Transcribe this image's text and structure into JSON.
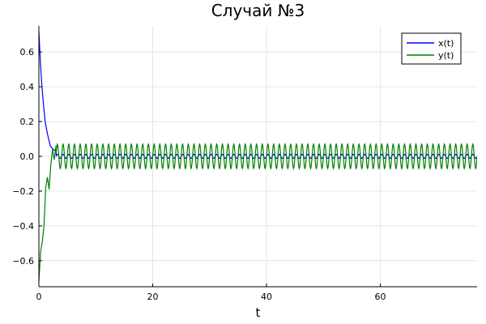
{
  "chart_data": {
    "type": "line",
    "title": "Случай №3",
    "xlabel": "t",
    "ylabel": "",
    "xlim": [
      0,
      77
    ],
    "ylim": [
      -0.75,
      0.75
    ],
    "grid": true,
    "legend_position": "top-right",
    "x_ticks": [
      0,
      20,
      40,
      60
    ],
    "x_tick_labels": [
      "0",
      "20",
      "40",
      "60"
    ],
    "y_ticks": [
      0.6,
      0.4,
      0.2,
      0.0,
      -0.2,
      -0.4,
      -0.6
    ],
    "y_tick_labels": [
      "0.6",
      "0.4",
      "0.2",
      "0.0",
      "−0.2",
      "−0.4",
      "−0.6"
    ],
    "series": [
      {
        "name": "x(t)",
        "color": "#0000ff",
        "initial": 0.72,
        "transient_points": [
          [
            0,
            0.72
          ],
          [
            0.25,
            0.55
          ],
          [
            0.5,
            0.42
          ],
          [
            0.8,
            0.3
          ],
          [
            1.1,
            0.2
          ],
          [
            1.5,
            0.13
          ],
          [
            2.0,
            0.06
          ],
          [
            2.5,
            0.04
          ],
          [
            3.0,
            0.03
          ]
        ],
        "steady_amplitude": 0.012,
        "oscillation_period": 1.0
      },
      {
        "name": "y(t)",
        "color": "#008000",
        "initial": -0.72,
        "transient_points": [
          [
            0,
            -0.72
          ],
          [
            0.3,
            -0.55
          ],
          [
            0.6,
            -0.49
          ],
          [
            0.9,
            -0.4
          ],
          [
            1.2,
            -0.18
          ],
          [
            1.5,
            -0.12
          ],
          [
            1.8,
            -0.19
          ],
          [
            2.1,
            -0.05
          ],
          [
            2.4,
            0.04
          ],
          [
            2.7,
            -0.02
          ],
          [
            3.0,
            0.06
          ]
        ],
        "steady_amplitude": 0.07,
        "oscillation_period": 1.0
      }
    ]
  }
}
